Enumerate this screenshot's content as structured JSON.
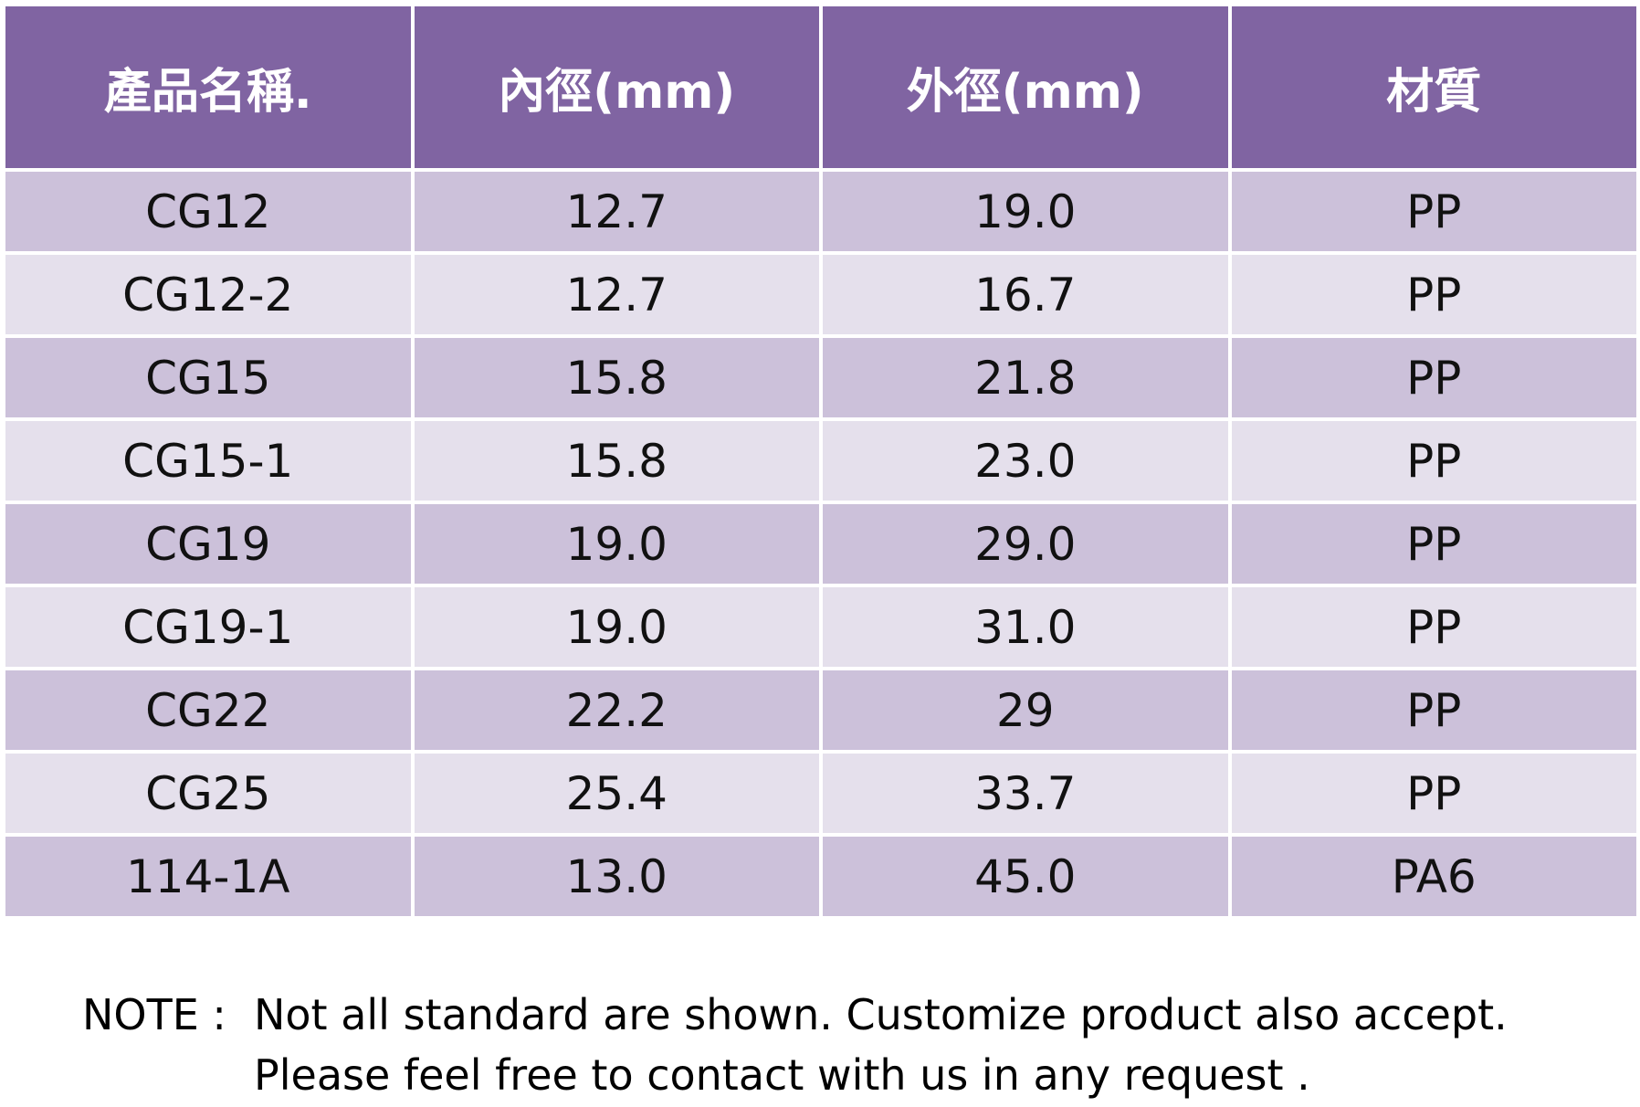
{
  "table": {
    "headers": [
      "產品名稱.",
      "內徑(mm)",
      "外徑(mm)",
      "材質"
    ],
    "rows": [
      [
        "CG12",
        "12.7",
        "19.0",
        "PP"
      ],
      [
        "CG12-2",
        "12.7",
        "16.7",
        "PP"
      ],
      [
        "CG15",
        "15.8",
        "21.8",
        "PP"
      ],
      [
        "CG15-1",
        "15.8",
        "23.0",
        "PP"
      ],
      [
        "CG19",
        "19.0",
        "29.0",
        "PP"
      ],
      [
        "CG19-1",
        "19.0",
        "31.0",
        "PP"
      ],
      [
        "CG22",
        "22.2",
        "29",
        "PP"
      ],
      [
        "CG25",
        "25.4",
        "33.7",
        "PP"
      ],
      [
        "114-1A",
        "13.0",
        "45.0",
        "PA6"
      ]
    ]
  },
  "note": {
    "label": "NOTE :",
    "lines": [
      "Not all standard are shown. Customize product also accept.",
      "Please feel free to contact with us in any request ."
    ]
  },
  "colors": {
    "header_bg": "#8064a2",
    "row_odd_bg": "#ccc1da",
    "row_even_bg": "#e5e0ec"
  }
}
